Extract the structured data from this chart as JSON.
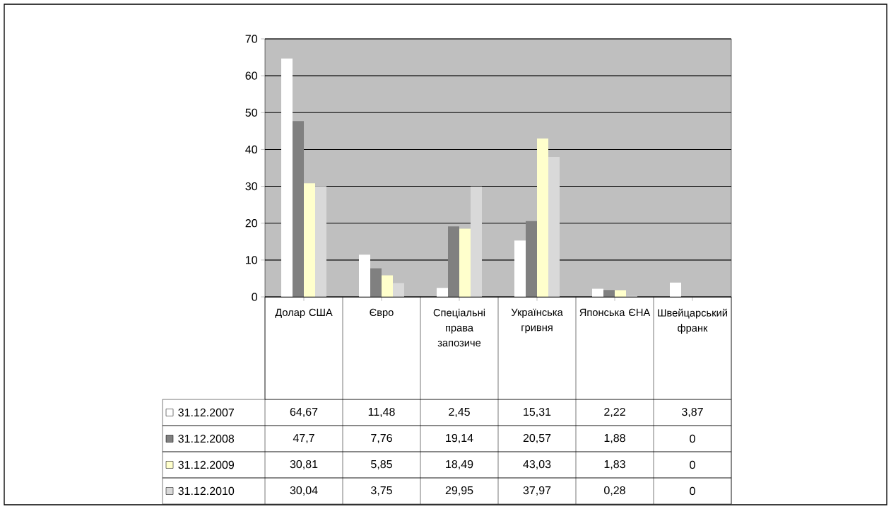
{
  "chart_data": {
    "type": "bar",
    "categories": [
      "Долар США",
      "Євро",
      "Спеціальні права запозиче",
      "Українська гривня",
      "Японська ЄНА",
      "Швейцарський франк"
    ],
    "series": [
      {
        "name": "31.12.2007",
        "color": "#ffffff",
        "values": [
          64.67,
          11.48,
          2.45,
          15.31,
          2.22,
          3.87
        ],
        "value_labels": [
          "64,67",
          "11,48",
          "2,45",
          "15,31",
          "2,22",
          "3,87"
        ]
      },
      {
        "name": "31.12.2008",
        "color": "#808080",
        "values": [
          47.7,
          7.76,
          19.14,
          20.57,
          1.88,
          0
        ],
        "value_labels": [
          "47,7",
          "7,76",
          "19,14",
          "20,57",
          "1,88",
          "0"
        ]
      },
      {
        "name": "31.12.2009",
        "color": "#ffffcc",
        "values": [
          30.81,
          5.85,
          18.49,
          43.03,
          1.83,
          0
        ],
        "value_labels": [
          "30,81",
          "5,85",
          "18,49",
          "43,03",
          "1,83",
          "0"
        ]
      },
      {
        "name": "31.12.2010",
        "color": "#d9d9d9",
        "values": [
          30.04,
          3.75,
          29.95,
          37.97,
          0.28,
          0
        ],
        "value_labels": [
          "30,04",
          "3,75",
          "29,95",
          "37,97",
          "0,28",
          "0"
        ]
      }
    ],
    "ylim": [
      0,
      70
    ],
    "yticks": [
      0,
      10,
      20,
      30,
      40,
      50,
      60,
      70
    ],
    "grid": "y",
    "tick_labels": "y",
    "legend": "bottom left"
  }
}
